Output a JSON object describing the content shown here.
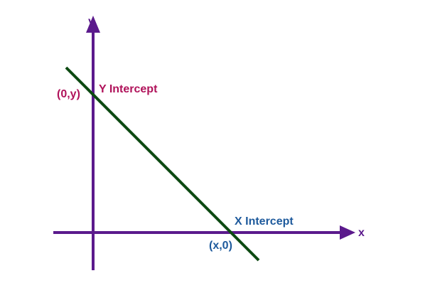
{
  "colors": {
    "axis": "#5b1a8c",
    "line": "#0d4a12",
    "y_intercept_text": "#b0125a",
    "x_intercept_text": "#1e5a9c",
    "axis_letter": "#5b1a8c",
    "background": "#ffffff"
  },
  "axes": {
    "x_label": "x",
    "y_label": "y"
  },
  "annotations": {
    "y_intercept_point": "(0,y)",
    "y_intercept_label": "Y Intercept",
    "x_intercept_point": "(x,0)",
    "x_intercept_label": "X Intercept"
  }
}
